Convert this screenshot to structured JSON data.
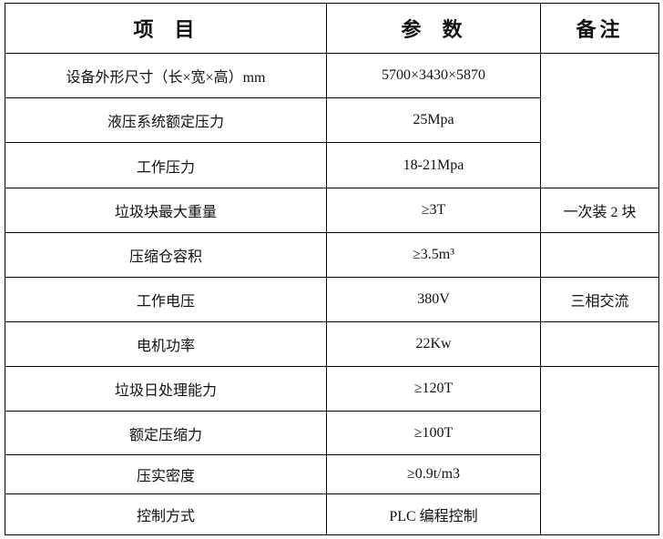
{
  "header": {
    "item": "项  目",
    "param": "参  数",
    "remark": "备注"
  },
  "rows": [
    {
      "item": "设备外形尺寸（长×宽×高）mm",
      "param": "5700×3430×5870"
    },
    {
      "item": "液压系统额定压力",
      "param": "25Mpa"
    },
    {
      "item": "工作压力",
      "param": "18-21Mpa"
    },
    {
      "item": "垃圾块最大重量",
      "param": "≥3T",
      "remark": "一次装 2 块"
    },
    {
      "item": "压缩仓容积",
      "param": "≥3.5m³"
    },
    {
      "item": "工作电压",
      "param": "380V",
      "remark": "三相交流"
    },
    {
      "item": "电机功率",
      "param": "22Kw"
    },
    {
      "item": "垃圾日处理能力",
      "param": "≥120T"
    },
    {
      "item": "额定压缩力",
      "param": "≥100T"
    },
    {
      "item": "压实密度",
      "param": "≥0.9t/m3"
    },
    {
      "item": "控制方式",
      "param": "PLC 编程控制"
    }
  ]
}
